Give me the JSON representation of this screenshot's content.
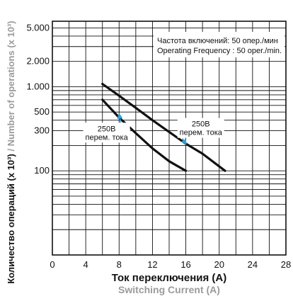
{
  "chart_data": {
    "type": "line",
    "xlabel": "Ток переключения (A)",
    "xlabel_en": "Switching Current (A)",
    "ylabel": "Количество операций (x 10³)",
    "ylabel_en": "Number of operations (x 10³)",
    "x_ticks": [
      "0",
      "4",
      "8",
      "12",
      "16",
      "20",
      "24",
      "28"
    ],
    "x_tick_values": [
      0,
      4,
      8,
      12,
      16,
      20,
      24,
      28
    ],
    "y_ticks": [
      "5.000",
      "2.000",
      "1.000",
      "500",
      "300",
      "100"
    ],
    "y_tick_values": [
      5000,
      2000,
      1000,
      500,
      300,
      100
    ],
    "xlim": [
      0,
      28
    ],
    "ylim": [
      10,
      6000
    ],
    "y_scale": "log",
    "grid": true,
    "annotation_box": {
      "line1": "Частота включений: 50 опер./мин",
      "line2": "Operating Frequency  : 50 oper./min."
    },
    "series": [
      {
        "name": "250В перем. тока",
        "x": [
          6,
          8,
          10,
          12,
          14,
          16
        ],
        "y": [
          700,
          430,
          280,
          185,
          130,
          100
        ]
      },
      {
        "name": "250В перем. тока",
        "x": [
          6,
          8,
          10,
          12,
          14,
          16,
          18,
          20.7
        ],
        "y": [
          1080,
          780,
          560,
          400,
          290,
          210,
          160,
          100
        ]
      }
    ],
    "series_labels": [
      {
        "line1": "250В",
        "line2": "перем. тока",
        "x": 6.5,
        "y": 290,
        "arrow_to_x": 8,
        "arrow_to_y": 470
      },
      {
        "line1": "250В",
        "line2": "перем. тока",
        "x": 17.8,
        "y": 330,
        "arrow_to_x": 16,
        "arrow_to_y": 210
      }
    ],
    "colors": {
      "line": "#111111",
      "grid": "#111111",
      "arrow": "#29a3d9",
      "en_label": "#9b9b9b"
    }
  }
}
